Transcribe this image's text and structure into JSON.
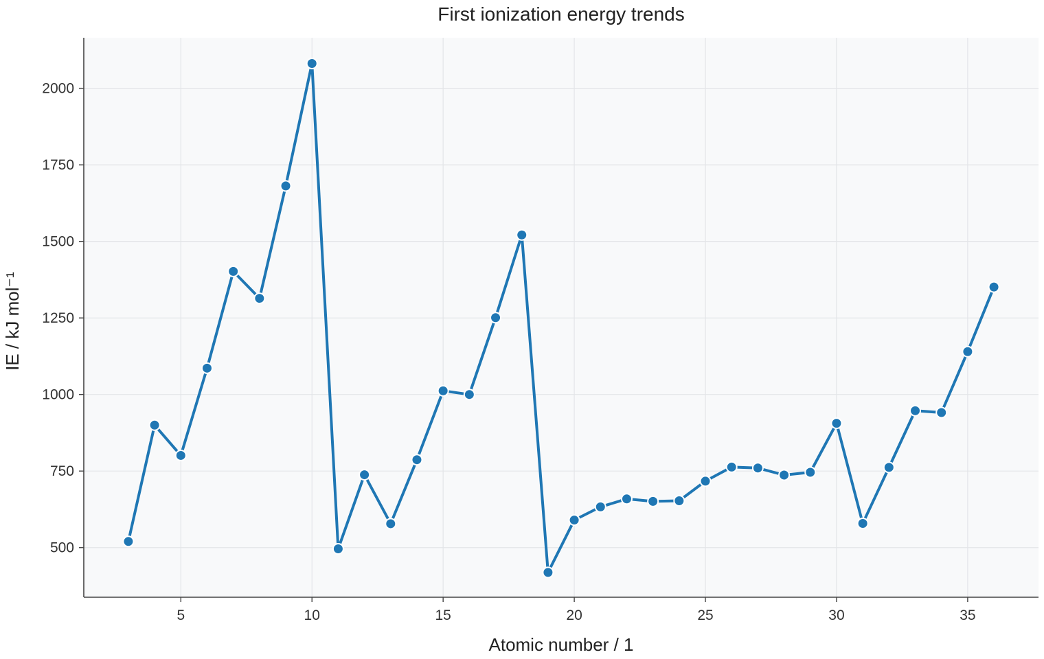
{
  "chart_data": {
    "type": "line",
    "title": "First ionization energy trends",
    "xlabel": "Atomic number / 1",
    "ylabel": "IE  / kJ mol⁻¹",
    "xlim": [
      1.3,
      37.7
    ],
    "ylim": [
      338,
      2165
    ],
    "xticks": [
      5,
      10,
      15,
      20,
      25,
      30,
      35
    ],
    "yticks": [
      500,
      750,
      1000,
      1250,
      1500,
      1750,
      2000
    ],
    "grid": true,
    "series": [
      {
        "x": [
          3,
          4,
          5,
          6,
          7,
          8,
          9,
          10,
          11,
          12,
          13,
          14,
          15,
          16,
          17,
          18,
          19,
          20,
          21,
          22,
          23,
          24,
          25,
          26,
          27,
          28,
          29,
          30,
          31,
          32,
          33,
          34,
          35,
          36
        ],
        "y": [
          520,
          900,
          801,
          1086,
          1402,
          1314,
          1681,
          2081,
          496,
          738,
          578,
          787,
          1012,
          1000,
          1251,
          1521,
          419,
          590,
          633,
          659,
          651,
          653,
          717,
          763,
          760,
          737,
          746,
          906,
          579,
          762,
          947,
          941,
          1140,
          1351
        ],
        "color": "#1f77b4"
      }
    ]
  }
}
